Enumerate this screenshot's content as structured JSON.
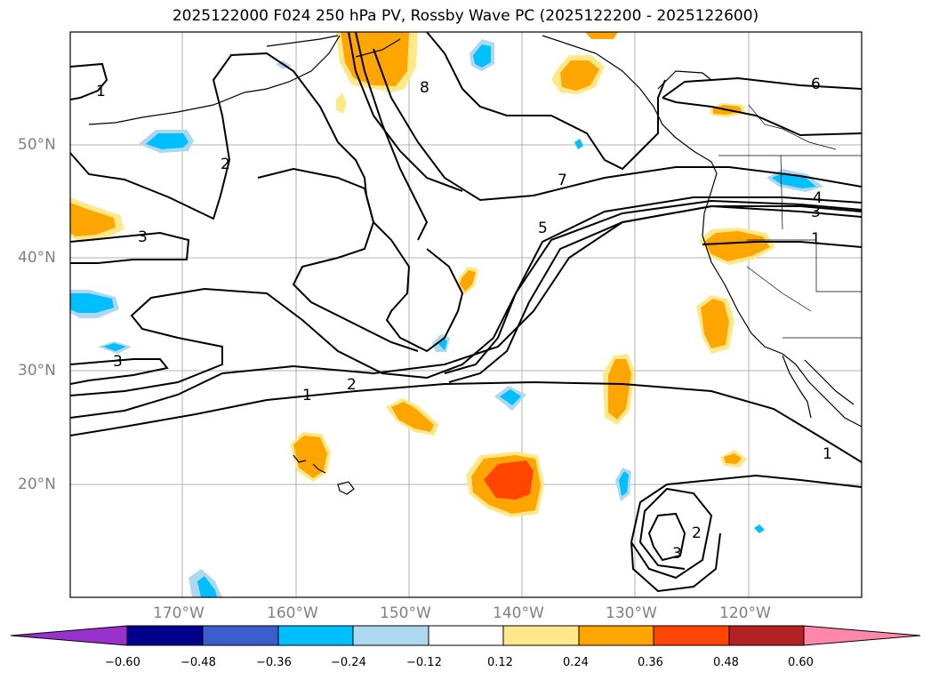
{
  "title": "2025122000 F024 250 hPa PV, Rossby Wave PC (2025122200 - 2025122600)",
  "lat_labels": [
    "50°N",
    "40°N",
    "30°N",
    "20°N"
  ],
  "lon_labels": [
    "170°W",
    "160°W",
    "150°W",
    "140°W",
    "130°W",
    "120°W"
  ],
  "contour_labels": [
    "1",
    "2",
    "3",
    "8",
    "7",
    "5",
    "6",
    "4",
    "3",
    "1",
    "3",
    "2",
    "1",
    "1",
    "2",
    "3"
  ],
  "colorbar": {
    "ticks": [
      "−0.60",
      "−0.48",
      "−0.36",
      "−0.24",
      "−0.12",
      "0.12",
      "0.24",
      "0.36",
      "0.48",
      "0.60"
    ],
    "colors": [
      "#9932cc",
      "#00008b",
      "#3a5fcd",
      "#00bfff",
      "#add8f0",
      "#ffffff",
      "#ffe88a",
      "#ffa500",
      "#ff4500",
      "#b22222",
      "#ff88aa"
    ]
  },
  "shading_colors": {
    "pos_light": "#ffe88a",
    "pos_mid": "#ffa500",
    "pos_high": "#ff4500",
    "neg_light": "#add8f0",
    "neg_mid": "#00bfff"
  }
}
